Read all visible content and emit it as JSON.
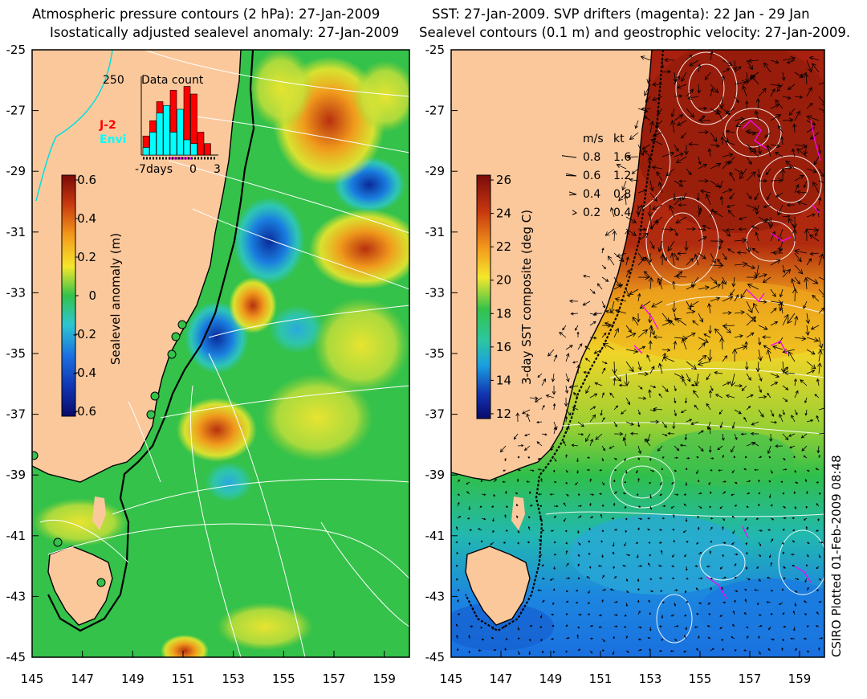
{
  "left_panel": {
    "title_line1": "Atmospheric pressure contours (2 hPa): 27-Jan-2009",
    "title_line2": "Isostatically adjusted sealevel anomaly: 27-Jan-2009",
    "y_ticks": [
      "-25",
      "-27",
      "-29",
      "-31",
      "-33",
      "-35",
      "-37",
      "-39",
      "-41",
      "-43",
      "-45"
    ],
    "x_ticks": [
      "145",
      "147",
      "149",
      "151",
      "153",
      "155",
      "157",
      "159"
    ],
    "colorbar": {
      "title": "Sealevel anomaly (m)",
      "ticks": [
        "0.6",
        "0.4",
        "0.2",
        "0",
        "-0.2",
        "-0.4",
        "-0.6"
      ]
    },
    "inset": {
      "title": "Data count",
      "max_label": "250",
      "x_tick_left": "-7days",
      "x_tick_mid": "0",
      "x_tick_right": "3",
      "legend_j2": "J-2",
      "legend_envi": "Envi",
      "j2_color": "#ff0000",
      "envi_color": "#00ffff",
      "bars_j2": [
        0.25,
        0.45,
        0.7,
        0.5,
        0.85,
        0.35,
        0.9,
        0.8,
        0.3,
        0.15
      ],
      "bars_envi": [
        0.1,
        0.3,
        0.55,
        0.65,
        0.3,
        0.6,
        0.2,
        0.15,
        0.0,
        0.0
      ]
    }
  },
  "right_panel": {
    "title_line1": "SST: 27-Jan-2009. SVP drifters (magenta): 22 Jan - 29 Jan",
    "title_line2": "Sealevel contours (0.1 m) and geostrophic velocity: 27-Jan-2009.",
    "y_ticks": [
      "-25",
      "-27",
      "-29",
      "-31",
      "-33",
      "-35",
      "-37",
      "-39",
      "-41",
      "-43",
      "-45"
    ],
    "x_ticks": [
      "145",
      "147",
      "149",
      "151",
      "153",
      "155",
      "157",
      "159"
    ],
    "colorbar": {
      "title": "3-day SST composite (deg C)",
      "ticks": [
        "26",
        "24",
        "22",
        "20",
        "18",
        "16",
        "14",
        "12"
      ]
    },
    "velocity_legend": {
      "header_ms": "m/s",
      "header_kt": "kt",
      "rows": [
        {
          "ms": "0.8",
          "kt": "1.6"
        },
        {
          "ms": "0.6",
          "kt": "1.2"
        },
        {
          "ms": "0.4",
          "kt": "0.8"
        },
        {
          "ms": "0.2",
          "kt": "0.4"
        }
      ]
    }
  },
  "side_note": "CSIRO Plotted 01-Feb-2009 08:48",
  "colors": {
    "land": "#fbc89c",
    "ocean_green": "#33c24a",
    "sst_red": "#a8200f",
    "sst_blue": "#1f7fe0",
    "contour": "#ffffff",
    "drifter": "#ff00ff",
    "coast": "#000000",
    "cyan_line": "#00e0e0"
  }
}
